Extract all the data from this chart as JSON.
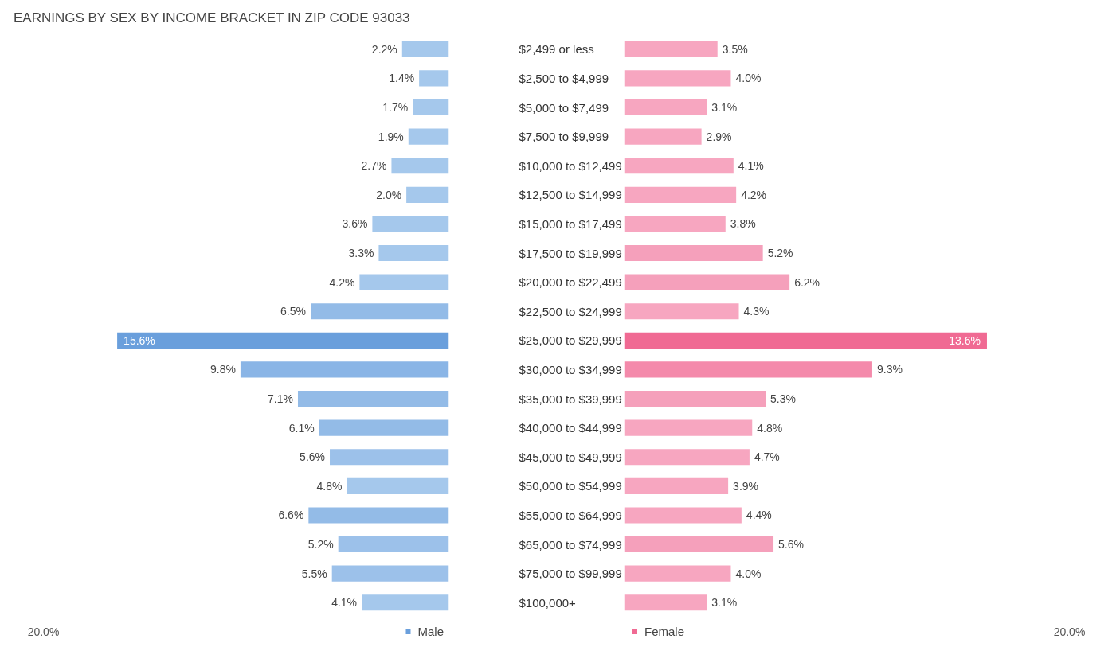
{
  "chart_data": [
    {
      "type": "bar",
      "orientation": "horizontal",
      "title": "EARNINGS BY SEX BY INCOME BRACKET IN ZIP CODE 93033",
      "categories": [
        "$2,499 or less",
        "$2,500 to $4,999",
        "$5,000 to $7,499",
        "$7,500 to $9,999",
        "$10,000 to $12,499",
        "$12,500 to $14,999",
        "$15,000 to $17,499",
        "$17,500 to $19,999",
        "$20,000 to $22,499",
        "$22,500 to $24,999",
        "$25,000 to $29,999",
        "$30,000 to $34,999",
        "$35,000 to $39,999",
        "$40,000 to $44,999",
        "$45,000 to $49,999",
        "$50,000 to $54,999",
        "$55,000 to $64,999",
        "$65,000 to $74,999",
        "$75,000 to $99,999",
        "$100,000+"
      ],
      "series": [
        {
          "name": "Male",
          "color": "#6a9fdc",
          "values": [
            2.2,
            1.4,
            1.7,
            1.9,
            2.7,
            2.0,
            3.6,
            3.3,
            4.2,
            6.5,
            15.6,
            9.8,
            7.1,
            6.1,
            5.6,
            4.8,
            6.6,
            5.2,
            5.5,
            4.1
          ],
          "value_labels": [
            "2.2%",
            "1.4%",
            "1.7%",
            "1.9%",
            "2.7%",
            "2.0%",
            "3.6%",
            "3.3%",
            "4.2%",
            "6.5%",
            "15.6%",
            "9.8%",
            "7.1%",
            "6.1%",
            "5.6%",
            "4.8%",
            "6.6%",
            "5.2%",
            "5.5%",
            "4.1%"
          ],
          "colors": [
            "#a5c8ec",
            "#a5c8ec",
            "#a5c8ec",
            "#a5c8ec",
            "#a5c8ec",
            "#a5c8ec",
            "#a5c8ec",
            "#a5c8ec",
            "#a5c8ec",
            "#93bbe7",
            "#6a9fdc",
            "#8ab5e6",
            "#93bbe7",
            "#93bbe7",
            "#9cc1ea",
            "#a5c8ec",
            "#93bbe7",
            "#9cc1ea",
            "#9cc1ea",
            "#a5c8ec"
          ]
        }
      ],
      "annotations": [
        "20.0%"
      ],
      "tick_labels": "y",
      "legend": "bottom right"
    },
    {
      "type": "bar",
      "orientation": "horizontal",
      "categories": [
        null,
        null,
        null,
        null,
        null,
        null,
        null,
        null,
        null,
        null,
        null,
        null,
        null,
        null,
        null,
        null,
        null,
        null,
        null,
        null
      ],
      "series": [
        {
          "name": "Female",
          "color": "#f06a93",
          "values": [
            3.5,
            4.0,
            3.1,
            2.9,
            4.1,
            4.2,
            3.8,
            5.2,
            6.2,
            4.3,
            13.6,
            9.3,
            5.3,
            4.8,
            4.7,
            3.9,
            4.4,
            5.6,
            4.0,
            3.1
          ],
          "value_labels": [
            "3.5%",
            "4.0%",
            "3.1%",
            "2.9%",
            "4.1%",
            "4.2%",
            "3.8%",
            "5.2%",
            "6.2%",
            "4.3%",
            "13.6%",
            "9.3%",
            "5.3%",
            "4.8%",
            "4.7%",
            "3.9%",
            "4.4%",
            "5.6%",
            "4.0%",
            "3.1%"
          ],
          "colors": [
            "#f7a6c0",
            "#f7a6c0",
            "#f7a6c0",
            "#f7a6c0",
            "#f7a6c0",
            "#f7a6c0",
            "#f7a6c0",
            "#f5a0bb",
            "#f5a0bb",
            "#f7a6c0",
            "#f06a93",
            "#f48aab",
            "#f5a0bb",
            "#f7a6c0",
            "#f7a6c0",
            "#f7a6c0",
            "#f7a6c0",
            "#f5a0bb",
            "#f7a6c0",
            "#f7a6c0"
          ]
        }
      ],
      "annotations": [
        "20.0%"
      ],
      "tick_labels": false,
      "legend": "bottom left"
    }
  ]
}
